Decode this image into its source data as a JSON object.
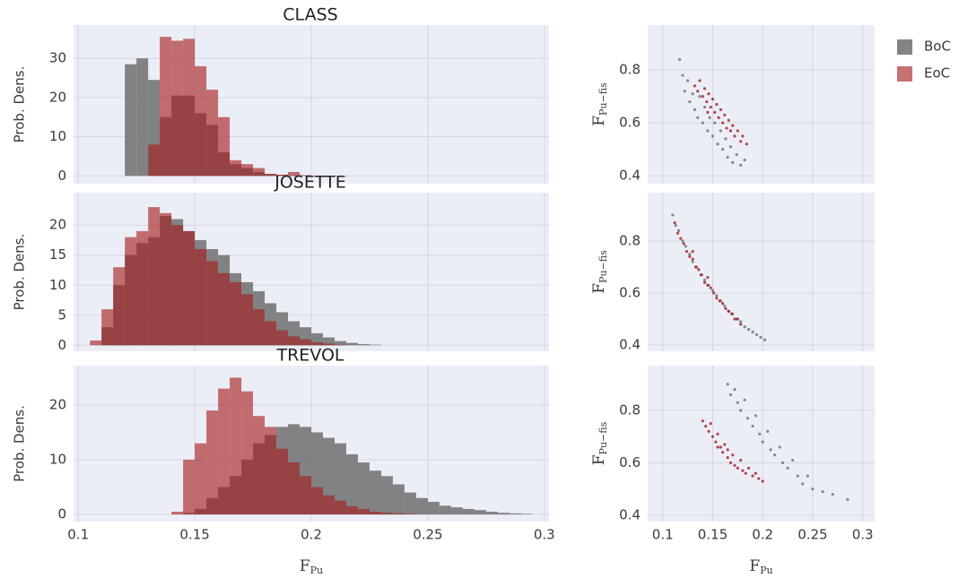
{
  "chart_data": [
    {
      "type": "histogram",
      "title": "CLASS",
      "ylabel": "Prob. Dens.",
      "bins": [
        0.12,
        0.125,
        0.13,
        0.135,
        0.14,
        0.145,
        0.15,
        0.155,
        0.16,
        0.165,
        0.17,
        0.175,
        0.18,
        0.185,
        0.19,
        0.195,
        0.2
      ],
      "series": [
        {
          "name": "BoC",
          "color": "#6e6e6e",
          "values": [
            28.5,
            30,
            24.5,
            15,
            20.5,
            20.5,
            16,
            13,
            6,
            3,
            2,
            1,
            0.5,
            0.3,
            0.1,
            0
          ]
        },
        {
          "name": "EoC",
          "color": "#a51c1c",
          "values": [
            0,
            0,
            8,
            35.5,
            34.5,
            35,
            28,
            22,
            15,
            4,
            3,
            2,
            0.5,
            0.3,
            1,
            0.2
          ]
        }
      ],
      "xlim": [
        0.098,
        0.302
      ],
      "ylim": [
        -2,
        38.5
      ],
      "yticks": [
        0,
        10,
        20,
        30
      ],
      "grid": true
    },
    {
      "type": "histogram",
      "title": "JOSETTE",
      "ylabel": "Prob. Dens.",
      "bins": [
        0.105,
        0.11,
        0.115,
        0.12,
        0.125,
        0.13,
        0.135,
        0.14,
        0.145,
        0.15,
        0.155,
        0.16,
        0.165,
        0.17,
        0.175,
        0.18,
        0.185,
        0.19,
        0.195,
        0.2,
        0.205,
        0.21,
        0.215,
        0.22,
        0.225,
        0.23,
        0.235,
        0.24
      ],
      "series": [
        {
          "name": "BoC",
          "color": "#6e6e6e",
          "values": [
            0,
            3,
            10,
            15,
            17,
            18,
            21.5,
            21,
            19,
            17.5,
            16,
            15,
            12,
            10.5,
            9,
            7,
            5.5,
            4,
            3,
            2,
            1.3,
            0.7,
            0.4,
            0.2,
            0.1,
            0,
            0
          ]
        },
        {
          "name": "EoC",
          "color": "#a51c1c",
          "values": [
            0.8,
            6,
            13,
            18,
            19,
            23,
            22,
            20,
            19,
            16,
            14,
            12,
            10.5,
            8.5,
            6,
            4,
            2.5,
            1.5,
            1,
            0.5,
            0.3,
            0.1,
            0,
            0,
            0,
            0,
            0
          ]
        }
      ],
      "xlim": [
        0.098,
        0.302
      ],
      "ylim": [
        -1,
        25.4
      ],
      "yticks": [
        0,
        5,
        10,
        15,
        20
      ],
      "grid": true
    },
    {
      "type": "histogram",
      "title": "TREVOL",
      "ylabel": "Prob. Dens.",
      "xlabel": {
        "text": "F",
        "sub": "Pu"
      },
      "bins": [
        0.14,
        0.145,
        0.15,
        0.155,
        0.16,
        0.165,
        0.17,
        0.175,
        0.18,
        0.185,
        0.19,
        0.195,
        0.2,
        0.205,
        0.21,
        0.215,
        0.22,
        0.225,
        0.23,
        0.235,
        0.24,
        0.245,
        0.25,
        0.255,
        0.26,
        0.265,
        0.27,
        0.275,
        0.28,
        0.285,
        0.29,
        0.295
      ],
      "series": [
        {
          "name": "BoC",
          "color": "#6e6e6e",
          "values": [
            0,
            0.3,
            1,
            3,
            5,
            7,
            10,
            13,
            14.5,
            16,
            16.5,
            16,
            15,
            14,
            13,
            11,
            9.5,
            8,
            7,
            5.5,
            4,
            3,
            2.3,
            1.6,
            1.3,
            1,
            0.8,
            0.5,
            0.3,
            0.2,
            0.1
          ]
        },
        {
          "name": "EoC",
          "color": "#a51c1c",
          "values": [
            0.5,
            10,
            13,
            19,
            23,
            25,
            22.5,
            18,
            16,
            12,
            9.5,
            7,
            5,
            3.5,
            2.5,
            1.5,
            1,
            0.5,
            0.3,
            0.2,
            0.1,
            0,
            0,
            0,
            0,
            0,
            0,
            0,
            0,
            0,
            0
          ]
        }
      ],
      "xlim": [
        0.098,
        0.302
      ],
      "ylim": [
        -1.3,
        27.2
      ],
      "xticks": [
        0.1,
        0.15,
        0.2,
        0.25,
        0.3
      ],
      "yticks": [
        0,
        10,
        20
      ],
      "grid": true
    },
    {
      "type": "scatter",
      "ylabel": {
        "text": "F",
        "sub": "Pu−fis"
      },
      "legend": "right",
      "series": [
        {
          "name": "BoC",
          "color": "#6e6e6e",
          "x": [
            0.117,
            0.12,
            0.122,
            0.125,
            0.127,
            0.13,
            0.132,
            0.135,
            0.137,
            0.14,
            0.142,
            0.145,
            0.147,
            0.15,
            0.152,
            0.155,
            0.158,
            0.16,
            0.163,
            0.165,
            0.168,
            0.17,
            0.174,
            0.178,
            0.182
          ],
          "y": [
            0.84,
            0.78,
            0.72,
            0.76,
            0.68,
            0.71,
            0.65,
            0.62,
            0.7,
            0.6,
            0.66,
            0.57,
            0.62,
            0.55,
            0.6,
            0.52,
            0.57,
            0.5,
            0.54,
            0.47,
            0.51,
            0.45,
            0.48,
            0.44,
            0.46
          ]
        },
        {
          "name": "EoC",
          "color": "#a51c1c",
          "x": [
            0.132,
            0.135,
            0.137,
            0.14,
            0.142,
            0.144,
            0.146,
            0.148,
            0.15,
            0.152,
            0.154,
            0.156,
            0.158,
            0.16,
            0.162,
            0.164,
            0.166,
            0.168,
            0.17,
            0.172,
            0.175,
            0.178,
            0.18,
            0.184,
            0.145
          ],
          "y": [
            0.74,
            0.72,
            0.76,
            0.7,
            0.73,
            0.68,
            0.71,
            0.66,
            0.69,
            0.64,
            0.67,
            0.62,
            0.65,
            0.6,
            0.63,
            0.58,
            0.61,
            0.57,
            0.59,
            0.55,
            0.57,
            0.53,
            0.55,
            0.52,
            0.64
          ]
        }
      ],
      "xlim": [
        0.085,
        0.312
      ],
      "ylim": [
        0.37,
        0.97
      ],
      "yticks": [
        0.4,
        0.6,
        0.8
      ],
      "grid": true
    },
    {
      "type": "scatter",
      "ylabel": {
        "text": "F",
        "sub": "Pu−fis"
      },
      "series": [
        {
          "name": "BoC",
          "color": "#6e6e6e",
          "x": [
            0.11,
            0.113,
            0.116,
            0.12,
            0.123,
            0.127,
            0.13,
            0.134,
            0.138,
            0.142,
            0.146,
            0.15,
            0.154,
            0.158,
            0.162,
            0.166,
            0.17,
            0.174,
            0.178,
            0.182,
            0.186,
            0.19,
            0.194,
            0.198,
            0.202
          ],
          "y": [
            0.9,
            0.86,
            0.84,
            0.8,
            0.78,
            0.75,
            0.72,
            0.7,
            0.67,
            0.65,
            0.63,
            0.61,
            0.59,
            0.57,
            0.55,
            0.53,
            0.52,
            0.5,
            0.49,
            0.47,
            0.46,
            0.45,
            0.44,
            0.43,
            0.42
          ]
        },
        {
          "name": "EoC",
          "color": "#a51c1c",
          "x": [
            0.112,
            0.115,
            0.118,
            0.121,
            0.124,
            0.127,
            0.13,
            0.133,
            0.136,
            0.139,
            0.142,
            0.145,
            0.148,
            0.151,
            0.154,
            0.157,
            0.16,
            0.163,
            0.166,
            0.169,
            0.172,
            0.175,
            0.178,
            0.13,
            0.145
          ],
          "y": [
            0.87,
            0.83,
            0.81,
            0.79,
            0.76,
            0.74,
            0.73,
            0.7,
            0.69,
            0.67,
            0.64,
            0.63,
            0.62,
            0.6,
            0.58,
            0.57,
            0.56,
            0.54,
            0.53,
            0.52,
            0.5,
            0.5,
            0.48,
            0.76,
            0.66
          ]
        }
      ],
      "xlim": [
        0.085,
        0.312
      ],
      "ylim": [
        0.376,
        0.986
      ],
      "yticks": [
        0.4,
        0.6,
        0.8
      ],
      "grid": true
    },
    {
      "type": "scatter",
      "ylabel": {
        "text": "F",
        "sub": "Pu−fis"
      },
      "xlabel": {
        "text": "F",
        "sub": "Pu"
      },
      "series": [
        {
          "name": "BoC",
          "color": "#6e6e6e",
          "x": [
            0.165,
            0.168,
            0.172,
            0.175,
            0.178,
            0.182,
            0.185,
            0.19,
            0.193,
            0.197,
            0.2,
            0.205,
            0.208,
            0.212,
            0.217,
            0.22,
            0.225,
            0.23,
            0.235,
            0.24,
            0.245,
            0.25,
            0.26,
            0.27,
            0.285
          ],
          "y": [
            0.9,
            0.86,
            0.88,
            0.83,
            0.8,
            0.84,
            0.77,
            0.74,
            0.78,
            0.71,
            0.68,
            0.72,
            0.65,
            0.63,
            0.66,
            0.6,
            0.58,
            0.61,
            0.55,
            0.52,
            0.55,
            0.5,
            0.49,
            0.48,
            0.46
          ]
        },
        {
          "name": "EoC",
          "color": "#a51c1c",
          "x": [
            0.14,
            0.143,
            0.146,
            0.148,
            0.15,
            0.153,
            0.155,
            0.158,
            0.16,
            0.162,
            0.165,
            0.168,
            0.17,
            0.172,
            0.175,
            0.178,
            0.18,
            0.183,
            0.186,
            0.19,
            0.193,
            0.196,
            0.2,
            0.155,
            0.165
          ],
          "y": [
            0.76,
            0.74,
            0.72,
            0.75,
            0.7,
            0.68,
            0.71,
            0.66,
            0.64,
            0.67,
            0.62,
            0.6,
            0.63,
            0.59,
            0.58,
            0.61,
            0.57,
            0.56,
            0.58,
            0.55,
            0.56,
            0.54,
            0.53,
            0.66,
            0.65
          ]
        }
      ],
      "xlim": [
        0.085,
        0.312
      ],
      "ylim": [
        0.376,
        0.971
      ],
      "xticks": [
        0.1,
        0.15,
        0.2,
        0.25,
        0.3
      ],
      "yticks": [
        0.4,
        0.6,
        0.8
      ],
      "grid": true
    }
  ]
}
